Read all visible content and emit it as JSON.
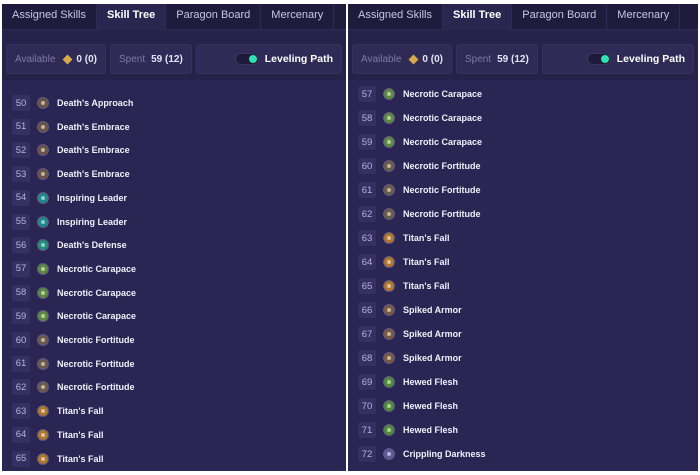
{
  "tabs": [
    "Assigned Skills",
    "Skill Tree",
    "Paragon Board",
    "Mercenary"
  ],
  "stats": {
    "available_label": "Available",
    "available_value": "0 (0)",
    "spent_label": "Spent",
    "spent_value": "59 (12)",
    "path_label": "Leveling Path"
  },
  "colors": {
    "death": "#6b5340",
    "inspiring": "#1d8a8a",
    "defense": "#1f8f7e",
    "carapace": "#5b8a3c",
    "fortitude": "#6b5a45",
    "titan": "#b0762a",
    "spiked": "#7a5a3a",
    "hewed": "#4f8a36",
    "crippling": "#5d5a9a"
  },
  "left_panel": {
    "rows": [
      {
        "num": "50",
        "name": "Death's Approach",
        "icon": "death"
      },
      {
        "num": "51",
        "name": "Death's Embrace",
        "icon": "death"
      },
      {
        "num": "52",
        "name": "Death's Embrace",
        "icon": "death"
      },
      {
        "num": "53",
        "name": "Death's Embrace",
        "icon": "death"
      },
      {
        "num": "54",
        "name": "Inspiring Leader",
        "icon": "inspiring"
      },
      {
        "num": "55",
        "name": "Inspiring Leader",
        "icon": "inspiring"
      },
      {
        "num": "56",
        "name": "Death's Defense",
        "icon": "defense"
      },
      {
        "num": "57",
        "name": "Necrotic Carapace",
        "icon": "carapace"
      },
      {
        "num": "58",
        "name": "Necrotic Carapace",
        "icon": "carapace"
      },
      {
        "num": "59",
        "name": "Necrotic Carapace",
        "icon": "carapace"
      },
      {
        "num": "60",
        "name": "Necrotic Fortitude",
        "icon": "fortitude"
      },
      {
        "num": "61",
        "name": "Necrotic Fortitude",
        "icon": "fortitude"
      },
      {
        "num": "62",
        "name": "Necrotic Fortitude",
        "icon": "fortitude"
      },
      {
        "num": "63",
        "name": "Titan's Fall",
        "icon": "titan"
      },
      {
        "num": "64",
        "name": "Titan's Fall",
        "icon": "titan"
      },
      {
        "num": "65",
        "name": "Titan's Fall",
        "icon": "titan"
      }
    ]
  },
  "right_panel": {
    "rows": [
      {
        "num": "57",
        "name": "Necrotic Carapace",
        "icon": "carapace"
      },
      {
        "num": "58",
        "name": "Necrotic Carapace",
        "icon": "carapace"
      },
      {
        "num": "59",
        "name": "Necrotic Carapace",
        "icon": "carapace"
      },
      {
        "num": "60",
        "name": "Necrotic Fortitude",
        "icon": "fortitude"
      },
      {
        "num": "61",
        "name": "Necrotic Fortitude",
        "icon": "fortitude"
      },
      {
        "num": "62",
        "name": "Necrotic Fortitude",
        "icon": "fortitude"
      },
      {
        "num": "63",
        "name": "Titan's Fall",
        "icon": "titan"
      },
      {
        "num": "64",
        "name": "Titan's Fall",
        "icon": "titan"
      },
      {
        "num": "65",
        "name": "Titan's Fall",
        "icon": "titan"
      },
      {
        "num": "66",
        "name": "Spiked Armor",
        "icon": "spiked"
      },
      {
        "num": "67",
        "name": "Spiked Armor",
        "icon": "spiked"
      },
      {
        "num": "68",
        "name": "Spiked Armor",
        "icon": "spiked"
      },
      {
        "num": "69",
        "name": "Hewed Flesh",
        "icon": "hewed"
      },
      {
        "num": "70",
        "name": "Hewed Flesh",
        "icon": "hewed"
      },
      {
        "num": "71",
        "name": "Hewed Flesh",
        "icon": "hewed"
      },
      {
        "num": "72",
        "name": "Crippling Darkness",
        "icon": "crippling"
      }
    ]
  }
}
